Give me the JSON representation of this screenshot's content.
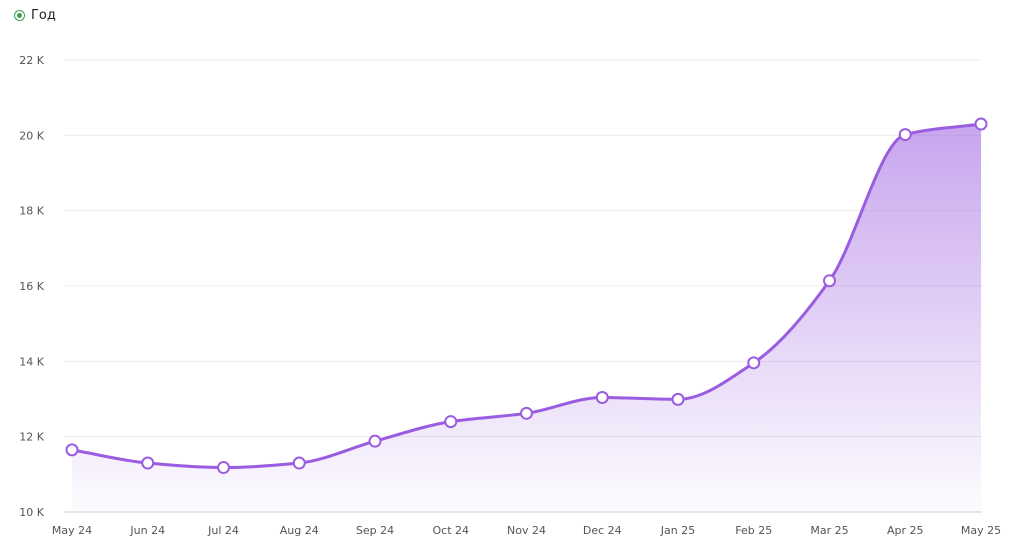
{
  "legend": {
    "label": "Год",
    "marker_color": "#3fa34d"
  },
  "chart_data": {
    "type": "area",
    "categories": [
      "May 24",
      "Jun 24",
      "Jul 24",
      "Aug 24",
      "Sep 24",
      "Oct 24",
      "Nov 24",
      "Dec 24",
      "Jan 25",
      "Feb 25",
      "Mar 25",
      "Apr 25",
      "May 25"
    ],
    "series": [
      {
        "name": "Год",
        "values": [
          11650,
          11300,
          11180,
          11300,
          11880,
          12400,
          12620,
          13040,
          12990,
          13960,
          16140,
          20020,
          20300
        ]
      }
    ],
    "ylim": [
      10000,
      22000
    ],
    "yticks": [
      10000,
      12000,
      14000,
      16000,
      18000,
      20000,
      22000
    ],
    "ytick_labels": [
      "10 K",
      "12 K",
      "14 K",
      "16 K",
      "18 K",
      "20 K",
      "22 K"
    ],
    "grid": true,
    "line_color": "#9a5ce0",
    "fill_color": "#9a5ce0",
    "title": "",
    "xlabel": "",
    "ylabel": ""
  }
}
